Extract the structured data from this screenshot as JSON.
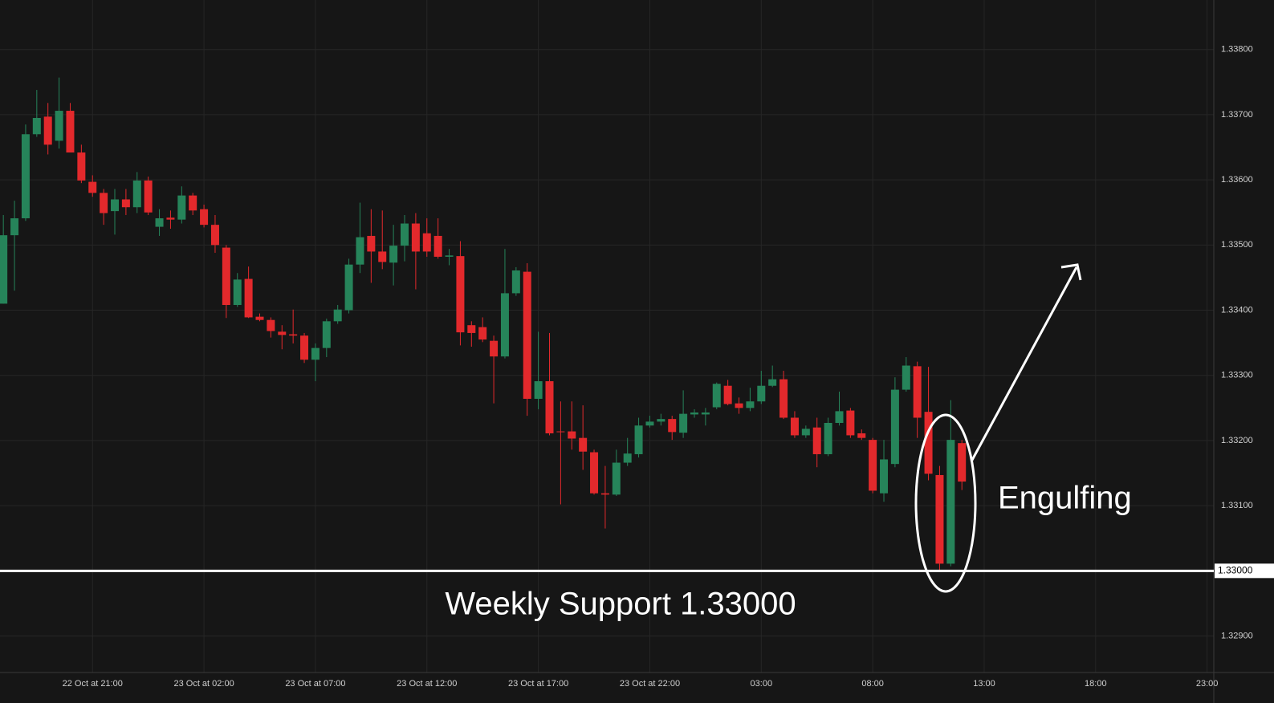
{
  "chart_data": {
    "type": "candlestick",
    "up_color": "#26845a",
    "down_color": "#e3292c",
    "grid": true,
    "x": [
      0,
      1,
      2,
      3,
      4,
      5,
      6,
      7,
      8,
      9,
      10,
      11,
      12,
      13,
      14,
      15,
      16,
      17,
      18,
      19,
      20,
      21,
      22,
      23,
      24,
      25,
      26,
      27,
      28,
      29,
      30,
      31,
      32,
      33,
      34,
      35,
      36,
      37,
      38,
      39,
      40,
      41,
      42,
      43,
      44,
      45,
      46,
      47,
      48,
      49,
      50,
      51,
      52,
      53,
      54,
      55,
      56,
      57,
      58,
      59,
      60,
      61,
      62,
      63,
      64,
      65,
      66,
      67,
      68,
      69,
      70,
      71,
      72,
      73,
      74,
      75,
      76,
      77,
      78,
      79,
      80,
      81,
      82,
      83,
      84,
      85,
      86
    ],
    "open": [
      1.3341,
      1.33515,
      1.33541,
      1.3367,
      1.33697,
      1.3366,
      1.33706,
      1.33642,
      1.33597,
      1.3358,
      1.33552,
      1.3357,
      1.33558,
      1.33599,
      1.33528,
      1.33542,
      1.33539,
      1.33576,
      1.33555,
      1.33531,
      1.33496,
      1.33408,
      1.33448,
      1.3339,
      1.33385,
      1.33367,
      1.33363,
      1.33361,
      1.33324,
      1.33342,
      1.33383,
      1.334,
      1.3347,
      1.33514,
      1.3349,
      1.33473,
      1.33499,
      1.33533,
      1.33518,
      1.33514,
      1.33482,
      1.33483,
      1.33377,
      1.33374,
      1.33353,
      1.33329,
      1.33426,
      1.33459,
      1.33264,
      1.33291,
      1.33214,
      1.33214,
      1.33204,
      1.33182,
      1.33119,
      1.33117,
      1.33166,
      1.33179,
      1.33223,
      1.33229,
      1.33233,
      1.33212,
      1.3324,
      1.3324,
      1.33251,
      1.33284,
      1.33257,
      1.3325,
      1.3326,
      1.33284,
      1.33294,
      1.33235,
      1.33208,
      1.3322,
      1.33179,
      1.33227,
      1.33246,
      1.33211,
      1.33201,
      1.33119,
      1.33164,
      1.33278,
      1.33314,
      1.33244,
      1.33147,
      1.33011,
      1.33196
    ],
    "high": [
      1.33546,
      1.33568,
      1.33685,
      1.33738,
      1.33718,
      1.33757,
      1.33718,
      1.33654,
      1.33607,
      1.33586,
      1.33586,
      1.33586,
      1.33612,
      1.33605,
      1.33555,
      1.33553,
      1.3359,
      1.3358,
      1.33562,
      1.33546,
      1.335,
      1.33457,
      1.33467,
      1.33395,
      1.33389,
      1.33377,
      1.33401,
      1.33365,
      1.33349,
      1.33387,
      1.33408,
      1.33479,
      1.33565,
      1.33555,
      1.33553,
      1.33531,
      1.33546,
      1.33549,
      1.33541,
      1.33541,
      1.33494,
      1.33506,
      1.33383,
      1.33389,
      1.33361,
      1.33494,
      1.33466,
      1.33472,
      1.33367,
      1.33365,
      1.3326,
      1.3326,
      1.33254,
      1.33186,
      1.33161,
      1.33186,
      1.33204,
      1.33235,
      1.33238,
      1.33241,
      1.33238,
      1.33277,
      1.33248,
      1.3325,
      1.33289,
      1.33293,
      1.33266,
      1.33281,
      1.33307,
      1.33315,
      1.33307,
      1.33245,
      1.33223,
      1.33235,
      1.33235,
      1.33275,
      1.3325,
      1.33217,
      1.33204,
      1.33201,
      1.33297,
      1.33328,
      1.33321,
      1.33313,
      1.33161,
      1.33262,
      1.33201
    ],
    "low": [
      1.3341,
      1.3343,
      1.33537,
      1.33666,
      1.33639,
      1.33648,
      1.33642,
      1.33595,
      1.33574,
      1.33531,
      1.33516,
      1.33546,
      1.33549,
      1.33546,
      1.33514,
      1.33525,
      1.33533,
      1.33546,
      1.33527,
      1.33488,
      1.33388,
      1.33405,
      1.33388,
      1.33383,
      1.33358,
      1.3334,
      1.33349,
      1.33319,
      1.33291,
      1.33328,
      1.33379,
      1.33395,
      1.33457,
      1.33442,
      1.33463,
      1.33438,
      1.33475,
      1.33432,
      1.33482,
      1.33479,
      1.33469,
      1.33346,
      1.33344,
      1.33351,
      1.33257,
      1.33326,
      1.33422,
      1.33238,
      1.33248,
      1.33208,
      1.33102,
      1.33186,
      1.33155,
      1.33117,
      1.33065,
      1.33115,
      1.33161,
      1.33174,
      1.3322,
      1.33223,
      1.33201,
      1.33204,
      1.33235,
      1.33223,
      1.33248,
      1.33254,
      1.33241,
      1.33245,
      1.33256,
      1.33282,
      1.33233,
      1.33204,
      1.33204,
      1.33159,
      1.33176,
      1.33223,
      1.33204,
      1.33201,
      1.33119,
      1.33106,
      1.33159,
      1.33275,
      1.33204,
      1.33139,
      1.33001,
      1.33007,
      1.33124
    ],
    "close": [
      1.33515,
      1.33541,
      1.3367,
      1.33695,
      1.33654,
      1.33706,
      1.33642,
      1.33599,
      1.3358,
      1.33549,
      1.3357,
      1.33558,
      1.33599,
      1.3355,
      1.33541,
      1.33539,
      1.33576,
      1.33553,
      1.33531,
      1.335,
      1.33408,
      1.33447,
      1.33389,
      1.33385,
      1.33368,
      1.33362,
      1.33361,
      1.33324,
      1.33342,
      1.33383,
      1.33401,
      1.3347,
      1.33512,
      1.3349,
      1.33474,
      1.33499,
      1.33533,
      1.3349,
      1.3349,
      1.33482,
      1.33484,
      1.33366,
      1.33365,
      1.33355,
      1.33329,
      1.33426,
      1.33461,
      1.33264,
      1.33291,
      1.33211,
      1.33213,
      1.33203,
      1.33183,
      1.33119,
      1.33117,
      1.33166,
      1.3318,
      1.33223,
      1.33229,
      1.33233,
      1.33213,
      1.33241,
      1.33243,
      1.33243,
      1.33287,
      1.33256,
      1.3325,
      1.3326,
      1.33284,
      1.33294,
      1.33235,
      1.33208,
      1.33218,
      1.33179,
      1.33227,
      1.33245,
      1.33208,
      1.33204,
      1.33123,
      1.33171,
      1.33278,
      1.33315,
      1.33235,
      1.33149,
      1.33011,
      1.33201,
      1.33137
    ],
    "xlim": [
      -0.3,
      108.6
    ],
    "xticks": [
      {
        "value": 8,
        "label": "22 Oct at 21:00"
      },
      {
        "value": 18,
        "label": "23 Oct at 02:00"
      },
      {
        "value": 28,
        "label": "23 Oct at 07:00"
      },
      {
        "value": 38,
        "label": "23 Oct at 12:00"
      },
      {
        "value": 48,
        "label": "23 Oct at 17:00"
      },
      {
        "value": 58,
        "label": "23 Oct at 22:00"
      },
      {
        "value": 68,
        "label": "03:00"
      },
      {
        "value": 78,
        "label": "08:00"
      },
      {
        "value": 88,
        "label": "13:00"
      },
      {
        "value": 98,
        "label": "18:00"
      },
      {
        "value": 108,
        "label": "23:00"
      }
    ],
    "ylim": [
      1.32844,
      1.33876
    ],
    "yticks": [
      {
        "value": 1.329,
        "label": "1.32900"
      },
      {
        "value": 1.331,
        "label": "1.33100"
      },
      {
        "value": 1.332,
        "label": "1.33200"
      },
      {
        "value": 1.333,
        "label": "1.33300"
      },
      {
        "value": 1.334,
        "label": "1.33400"
      },
      {
        "value": 1.335,
        "label": "1.33500"
      },
      {
        "value": 1.336,
        "label": "1.33600"
      },
      {
        "value": 1.337,
        "label": "1.33700"
      },
      {
        "value": 1.338,
        "label": "1.33800"
      }
    ],
    "support": {
      "value": 1.33,
      "label": "1.33000",
      "color": "#ffffff"
    },
    "annotations": [
      "Weekly Support 1.33000",
      "Engulfing"
    ]
  }
}
